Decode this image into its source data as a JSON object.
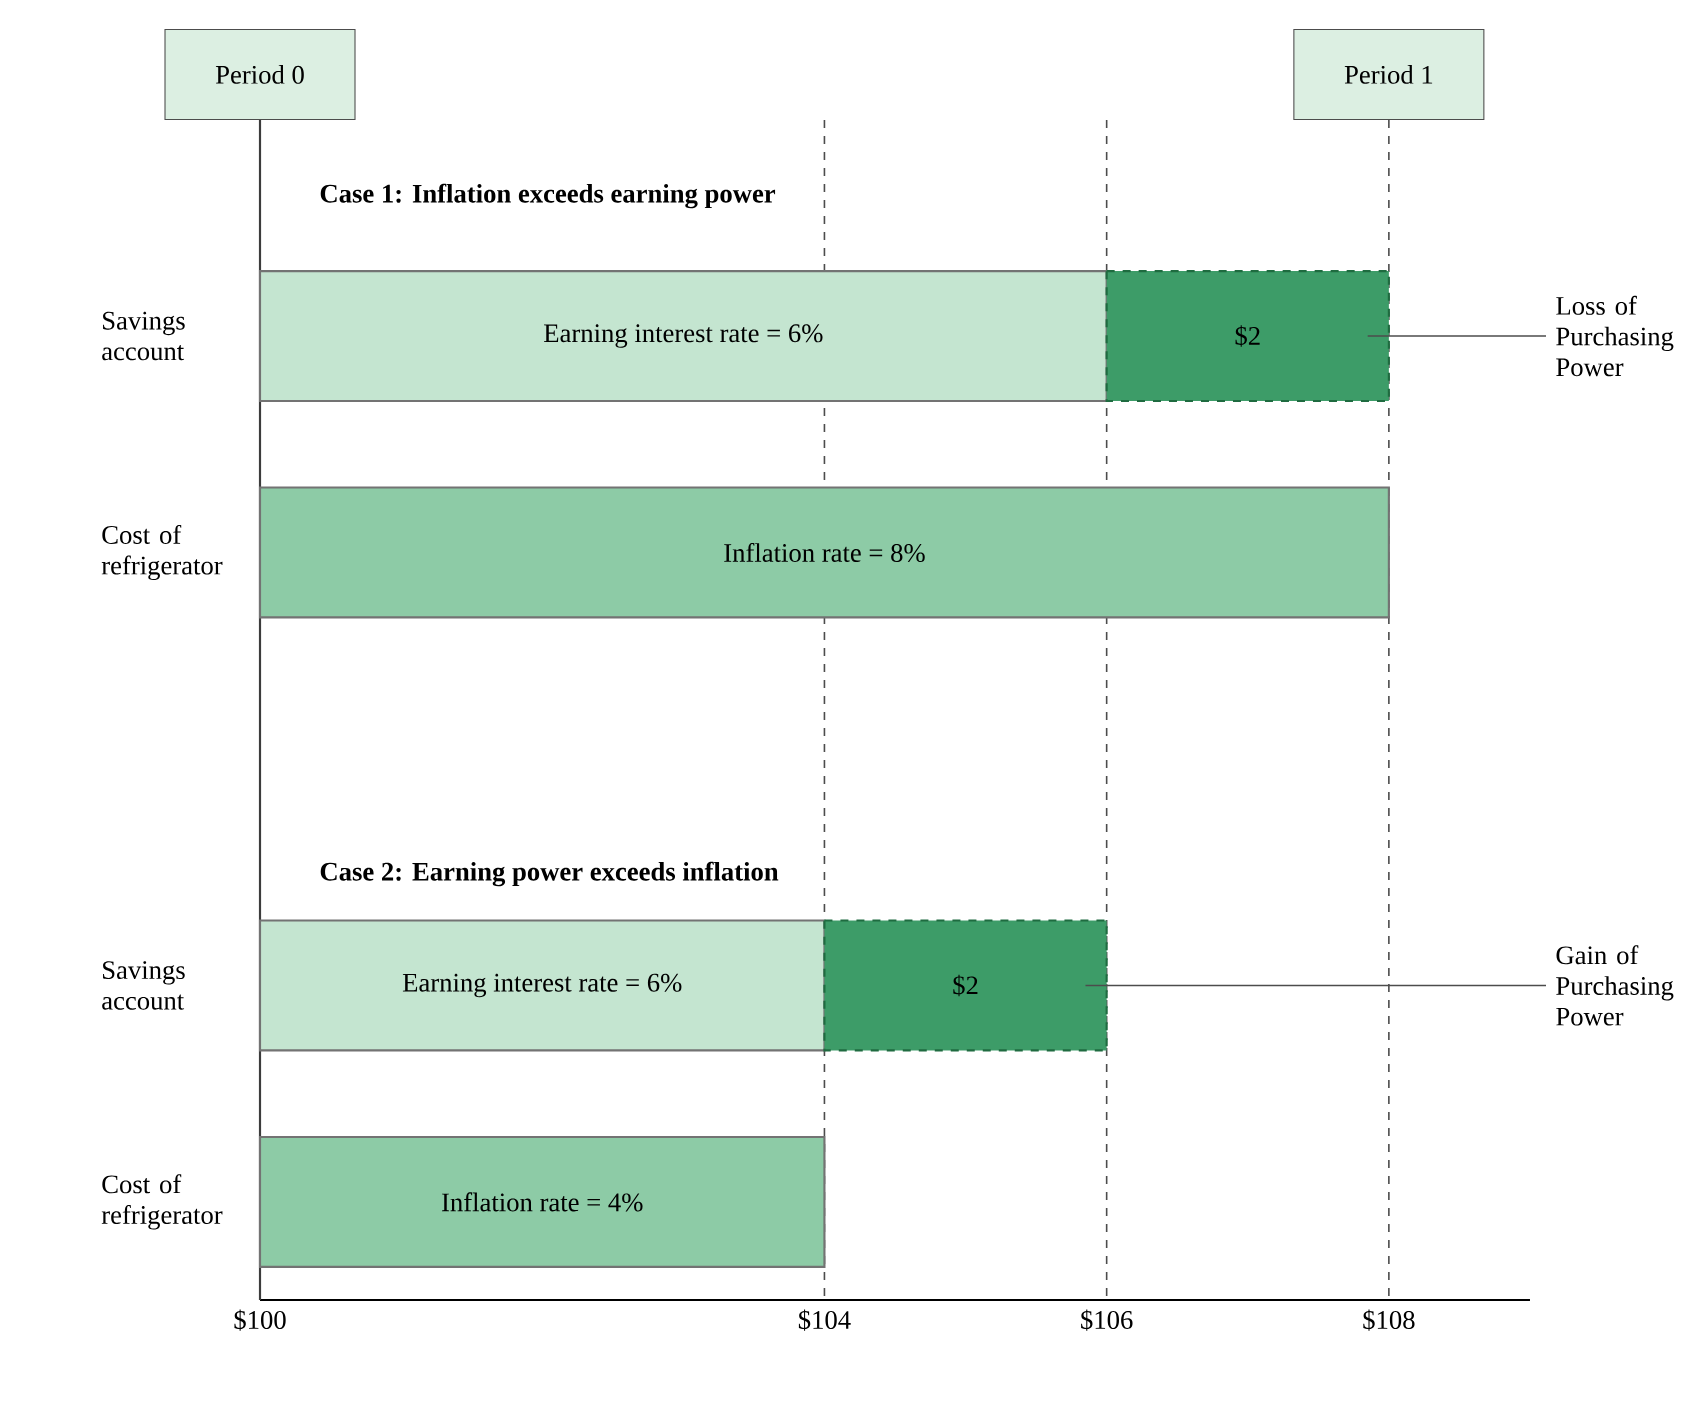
{
  "chart_data": {
    "type": "bar",
    "orientation": "horizontal",
    "categories": [
      "Savings account",
      "Cost of refrigerator",
      null,
      "Savings account",
      "Cost of refrigerator"
    ],
    "xlim": [
      100,
      109
    ],
    "xticks": [
      {
        "value": 100,
        "label": "$100"
      },
      {
        "value": 104,
        "label": "$104"
      },
      {
        "value": 106,
        "label": "$106"
      },
      {
        "value": 108,
        "label": "$108"
      }
    ],
    "series": [
      {
        "base": [
          100,
          100,
          null,
          100,
          100
        ],
        "values": [
          6,
          8,
          null,
          4,
          4
        ],
        "colors": [
          "#c4e5d0",
          "#8dcba6",
          null,
          "#c4e5d0",
          "#8dcba6"
        ]
      },
      {
        "base": [
          106,
          null,
          null,
          104,
          null
        ],
        "values": [
          2,
          null,
          null,
          2,
          null
        ],
        "colors": [
          "#3d9c68",
          null,
          null,
          "#3d9c68",
          null
        ],
        "value_labels": [
          "$2",
          null,
          null,
          "$2",
          null
        ],
        "line_style": "dashed"
      }
    ],
    "ref_lines": [
      {
        "axis": "x",
        "value": 100,
        "label": "Period 0",
        "line_style": "solid"
      },
      {
        "axis": "x",
        "value": 104,
        "line_style": "dashed"
      },
      {
        "axis": "x",
        "value": 106,
        "line_style": "dashed"
      },
      {
        "axis": "x",
        "value": 108,
        "label": "Period 1",
        "line_style": "dashed"
      }
    ],
    "annotations": [
      "Case 1: Inflation exceeds earning power",
      "Earning interest rate = 6%",
      "Inflation rate = 8%",
      "Loss of Purchasing Power",
      "Case 2: Earning power exceeds inflation",
      "Earning interest rate = 6%",
      "Inflation rate = 4%",
      "Gain of Purchasing Power"
    ]
  }
}
